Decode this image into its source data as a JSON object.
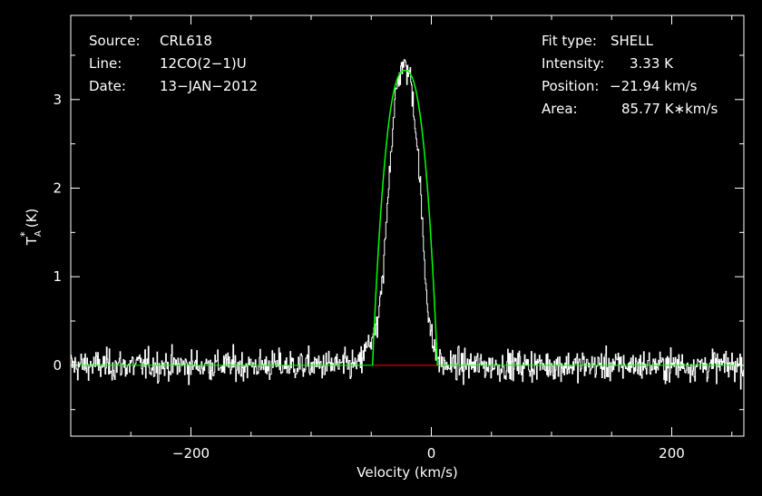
{
  "chart_data": {
    "type": "line",
    "title": "",
    "xlabel": "Velocity (km/s)",
    "ylabel_main": "T",
    "ylabel_sup": "*",
    "ylabel_sub": "A",
    "ylabel_unit": "(K)",
    "xlim": [
      -300,
      260
    ],
    "ylim": [
      -0.8,
      3.95
    ],
    "x_ticks": [
      -200,
      0,
      200
    ],
    "x_tick_labels": [
      "−200",
      "0",
      "200"
    ],
    "y_ticks": [
      0,
      1,
      2,
      3
    ],
    "y_tick_labels": [
      "0",
      "1",
      "2",
      "3"
    ],
    "info_left": [
      {
        "key": "Source:",
        "value": "CRL618"
      },
      {
        "key": "Line:",
        "value": "12CO(2−1)U"
      },
      {
        "key": "Date:",
        "value": "13−JAN−2012"
      }
    ],
    "info_right": [
      {
        "key": "Fit type:",
        "value": "SHELL"
      },
      {
        "key": "Intensity:",
        "value": "3.33 K"
      },
      {
        "key": "Position:",
        "value": "−21.94 km/s"
      },
      {
        "key": "Area:",
        "value": "85.77 K∗km/s"
      }
    ],
    "fit": {
      "type": "shell",
      "intensity": 3.33,
      "position": -21.94,
      "area": 85.77,
      "baseline": 0
    },
    "spectrum": {
      "name": "spectrum",
      "noise_rms": 0.12,
      "x_start": -300,
      "x_end": 260,
      "n_channels": 1000,
      "line_x": [
        -60,
        -50,
        -45,
        -40,
        -35,
        -30,
        -25,
        -21.94,
        -18,
        -15,
        -10,
        -5,
        0,
        5,
        10
      ],
      "line_y": [
        0,
        0.3,
        0.4,
        1.0,
        2.2,
        3.0,
        3.4,
        3.35,
        3.3,
        3.0,
        2.2,
        1.0,
        0.3,
        0.1,
        0
      ]
    },
    "colors": {
      "background": "#000000",
      "axes": "#ffffff",
      "spectrum": "#ffffff",
      "fit": "#00ff00",
      "baseline": "#ff0000"
    }
  }
}
